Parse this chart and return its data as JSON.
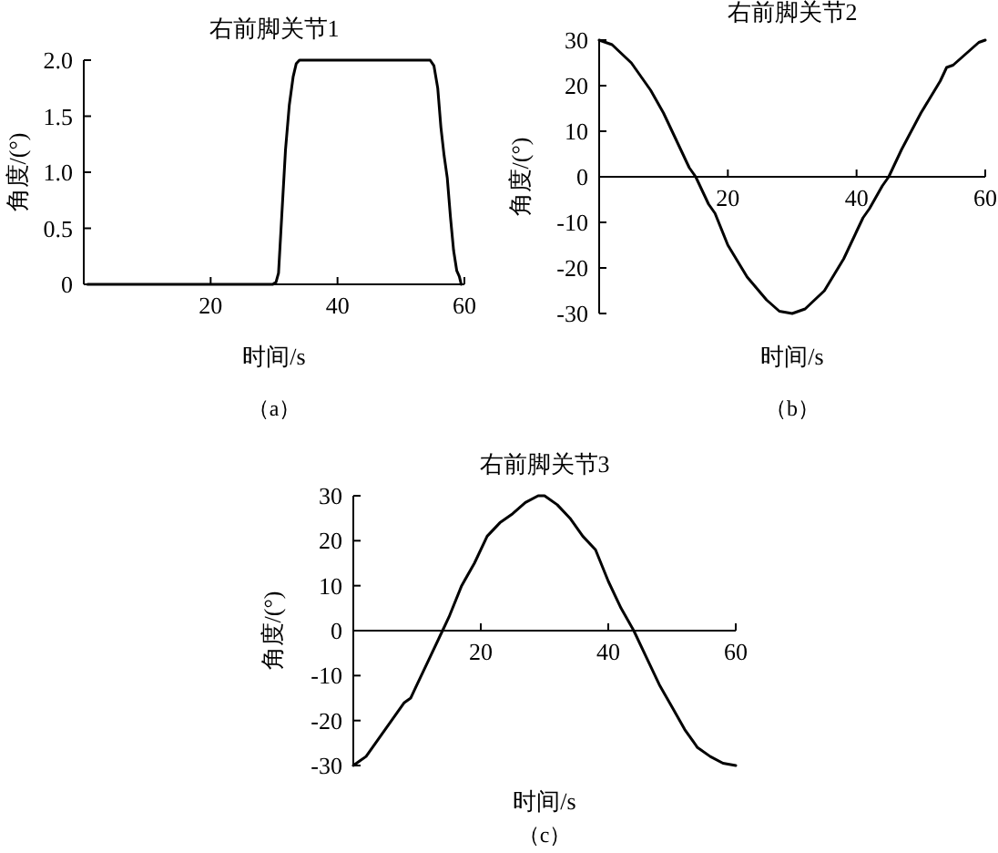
{
  "chart_data": [
    {
      "type": "line",
      "title": "右前脚关节1",
      "xlabel": "时间/s",
      "ylabel": "角度/(°)",
      "annotations": [
        "（a）"
      ],
      "color": "#000000",
      "xlim": [
        0,
        60
      ],
      "ylim": [
        0,
        2
      ],
      "xticks": [
        20,
        40,
        60
      ],
      "yticks": [
        0,
        {
          "value": 0.5,
          "label": "0.5"
        },
        {
          "value": 1,
          "label": "1.0"
        },
        {
          "value": 1.5,
          "label": "1.5"
        },
        {
          "value": 2,
          "label": "2.0"
        }
      ],
      "x": [
        0.6,
        10,
        20,
        29.2,
        29.8,
        30.3,
        30.7,
        31.2,
        31.8,
        32.4,
        33,
        33.5,
        34,
        40,
        50,
        54.6,
        55.2,
        55.8,
        56.3,
        56.8,
        57.3,
        57.8,
        58.3,
        58.8,
        59.2,
        59.5
      ],
      "values": [
        0,
        0,
        0,
        0,
        0,
        0.02,
        0.1,
        0.6,
        1.2,
        1.6,
        1.85,
        1.97,
        2,
        2,
        2,
        2,
        1.95,
        1.75,
        1.4,
        1.15,
        0.95,
        0.6,
        0.3,
        0.12,
        0.07,
        0
      ]
    },
    {
      "type": "line",
      "title": "右前脚关节2",
      "xlabel": "时间/s",
      "ylabel": "角度/(°)",
      "annotations": [
        "（b）"
      ],
      "color": "#000000",
      "xlim": [
        0,
        60
      ],
      "ylim": [
        -30,
        30
      ],
      "xticks": [
        20,
        40,
        60
      ],
      "yticks": [
        -30,
        -20,
        -10,
        0,
        10,
        20,
        30
      ],
      "x": [
        0,
        2,
        5,
        8,
        10,
        12,
        14,
        15,
        17,
        18,
        20,
        23,
        26,
        28,
        30,
        32,
        35,
        38,
        40,
        41,
        42,
        44,
        45,
        47,
        50,
        53,
        54,
        55,
        57,
        59,
        60
      ],
      "values": [
        30,
        29,
        25,
        19,
        14,
        8,
        2,
        0,
        -6,
        -8,
        -15,
        -22,
        -27,
        -29.5,
        -30,
        -29,
        -25,
        -18,
        -12,
        -9,
        -7,
        -2,
        0,
        6,
        14,
        21,
        24,
        24.5,
        27,
        29.5,
        30
      ]
    },
    {
      "type": "line",
      "title": "右前脚关节3",
      "xlabel": "时间/s",
      "ylabel": "角度/(°)",
      "annotations": [
        "（c）"
      ],
      "color": "#000000",
      "xlim": [
        0,
        60
      ],
      "ylim": [
        -30,
        30
      ],
      "xticks": [
        20,
        40,
        60
      ],
      "yticks": [
        -30,
        -20,
        -10,
        0,
        10,
        20,
        30
      ],
      "x": [
        0,
        1,
        2,
        4,
        6,
        8,
        9,
        10,
        12,
        14,
        15,
        17,
        19,
        21,
        23,
        25,
        27,
        29,
        30,
        32,
        34,
        36,
        38,
        40,
        42,
        44,
        46,
        48,
        50,
        52,
        54,
        56,
        58,
        60
      ],
      "values": [
        -30,
        -29,
        -28,
        -24,
        -20,
        -16,
        -15,
        -12,
        -6,
        0,
        3,
        10,
        15,
        21,
        24,
        26,
        28.5,
        30,
        30,
        28,
        25,
        21,
        18,
        11,
        5,
        0,
        -6,
        -12,
        -17,
        -22,
        -26,
        -28,
        -29.5,
        -30
      ]
    }
  ]
}
